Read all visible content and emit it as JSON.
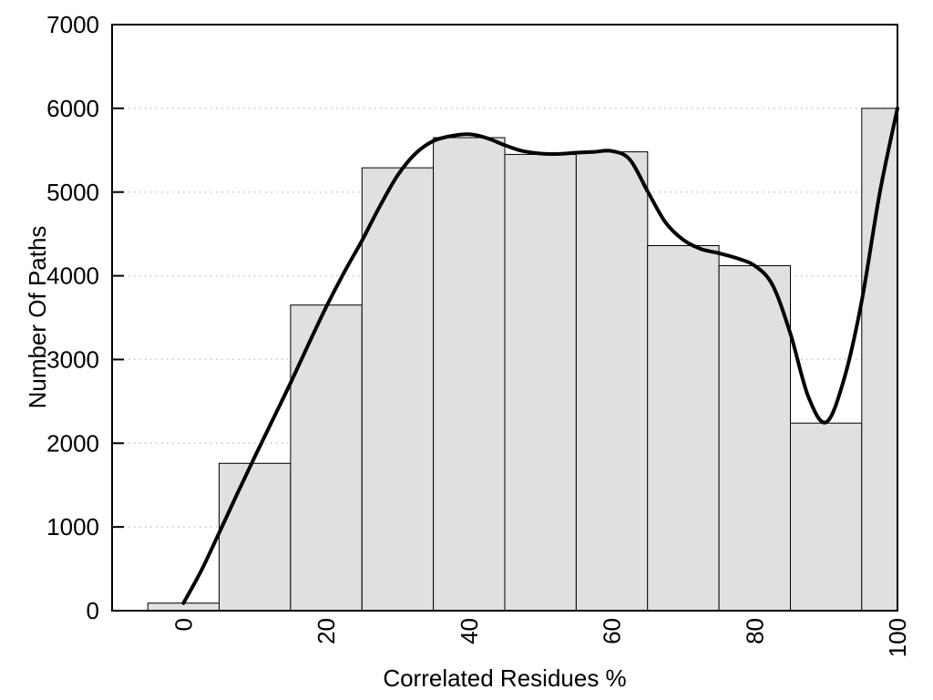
{
  "chart_data": {
    "type": "bar",
    "subtype": "histogram with smoothed density curve overlay",
    "title": "",
    "xlabel": "Correlated Residues %",
    "ylabel": "Number Of Paths",
    "xlim": [
      -10,
      100
    ],
    "ylim": [
      0,
      7000
    ],
    "x_ticks": [
      0,
      20,
      40,
      60,
      80,
      100
    ],
    "y_ticks": [
      0,
      1000,
      2000,
      3000,
      4000,
      5000,
      6000,
      7000
    ],
    "x_tick_rotation": -90,
    "grid": "horizontal dotted gridlines at y ticks, full plot border box",
    "legend": "none",
    "colors": {
      "bar_fill": "#e0e0e0",
      "bar_border": "#000000",
      "curve": "#000000",
      "grid": "#c4c4c4",
      "axis": "#000000",
      "background": "#ffffff",
      "text": "#000000"
    },
    "bars": [
      {
        "from": -5,
        "to": 5,
        "value": 90
      },
      {
        "from": 5,
        "to": 15,
        "value": 1760
      },
      {
        "from": 15,
        "to": 25,
        "value": 3650
      },
      {
        "from": 25,
        "to": 35,
        "value": 5290
      },
      {
        "from": 35,
        "to": 45,
        "value": 5650
      },
      {
        "from": 45,
        "to": 55,
        "value": 5450
      },
      {
        "from": 55,
        "to": 65,
        "value": 5480
      },
      {
        "from": 65,
        "to": 75,
        "value": 4360
      },
      {
        "from": 75,
        "to": 85,
        "value": 4120
      },
      {
        "from": 85,
        "to": 95,
        "value": 2240
      },
      {
        "from": 95,
        "to": 100,
        "value": 6000
      }
    ],
    "series": [
      {
        "name": "smoothed-trend-curve",
        "type": "line",
        "x": [
          0,
          2.5,
          5,
          7.5,
          10,
          12.5,
          15,
          17.5,
          20,
          22.5,
          25,
          27.5,
          30,
          32.5,
          35,
          37.5,
          40,
          42.5,
          45,
          47.5,
          50,
          52.5,
          55,
          57.5,
          60,
          62.5,
          65,
          67.5,
          70,
          72.5,
          75,
          77.5,
          80,
          82.5,
          85,
          87.5,
          90,
          92.5,
          95,
          97.5,
          100
        ],
        "y": [
          90,
          480,
          930,
          1390,
          1840,
          2280,
          2720,
          3180,
          3630,
          4040,
          4420,
          4830,
          5200,
          5460,
          5610,
          5670,
          5690,
          5645,
          5560,
          5490,
          5460,
          5455,
          5470,
          5480,
          5490,
          5390,
          5010,
          4640,
          4430,
          4320,
          4270,
          4210,
          4120,
          3890,
          3310,
          2560,
          2250,
          2760,
          3700,
          4980,
          6000
        ]
      }
    ]
  }
}
